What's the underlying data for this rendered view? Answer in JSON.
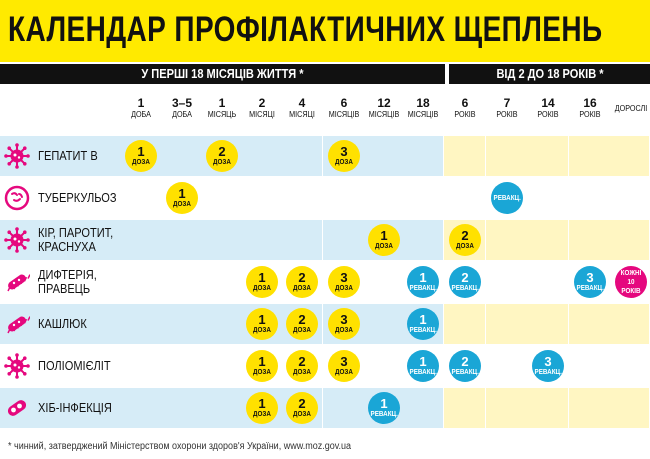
{
  "title": "КАЛЕНДАР ПРОФІЛАКТИЧНИХ ЩЕПЛЕНЬ",
  "bands": [
    {
      "label": "У ПЕРШІ 18 МІСЯЦІВ ЖИТТЯ *"
    },
    {
      "label": "ВІД 2 ДО 18 РОКІВ *"
    }
  ],
  "columns": [
    {
      "num": "1",
      "unit": "ДОБА"
    },
    {
      "num": "3–5",
      "unit": "ДОБА"
    },
    {
      "num": "1",
      "unit": "МІСЯЦЬ"
    },
    {
      "num": "2",
      "unit": "МІСЯЦІ"
    },
    {
      "num": "4",
      "unit": "МІСЯЦІ"
    },
    {
      "num": "6",
      "unit": "МІСЯЦІВ"
    },
    {
      "num": "12",
      "unit": "МІСЯЦІВ"
    },
    {
      "num": "18",
      "unit": "МІСЯЦІВ"
    },
    {
      "num": "6",
      "unit": "РОКІВ"
    },
    {
      "num": "7",
      "unit": "РОКІВ"
    },
    {
      "num": "14",
      "unit": "РОКІВ"
    },
    {
      "num": "16",
      "unit": "РОКІВ"
    },
    {
      "num": "",
      "unit": "ДОРОСЛІ"
    }
  ],
  "labels": {
    "dose": "ДОЗА",
    "revac": "РЕВАКЦ.",
    "every10": "КОЖНІ 10 РОКІВ"
  },
  "vaccines": [
    {
      "name": "ГЕПАТИТ В",
      "icon": "virus-icon"
    },
    {
      "name": "ТУБЕРКУЛЬОЗ",
      "icon": "bacteria-icon"
    },
    {
      "name": "КІР, ПАРОТИТ, КРАСНУХА",
      "icon": "virus-icon"
    },
    {
      "name": "ДИФТЕРІЯ, ПРАВЕЦЬ",
      "icon": "bacillus-icon"
    },
    {
      "name": "КАШЛЮК",
      "icon": "bacillus-icon"
    },
    {
      "name": "ПОЛІОМІЄЛІТ",
      "icon": "virus-icon"
    },
    {
      "name": "ХІБ-ІНФЕКЦІЯ",
      "icon": "cell-icon"
    }
  ],
  "marks": [
    {
      "row": 0,
      "col": 0,
      "n": "1",
      "type": "dose"
    },
    {
      "row": 0,
      "col": 2,
      "n": "2",
      "type": "dose"
    },
    {
      "row": 0,
      "col": 5,
      "n": "3",
      "type": "dose"
    },
    {
      "row": 1,
      "col": 1,
      "n": "1",
      "type": "dose"
    },
    {
      "row": 1,
      "col": 9,
      "n": "",
      "type": "revac"
    },
    {
      "row": 2,
      "col": 6,
      "n": "1",
      "type": "dose"
    },
    {
      "row": 2,
      "col": 8,
      "n": "2",
      "type": "dose"
    },
    {
      "row": 3,
      "col": 3,
      "n": "1",
      "type": "dose"
    },
    {
      "row": 3,
      "col": 4,
      "n": "2",
      "type": "dose"
    },
    {
      "row": 3,
      "col": 5,
      "n": "3",
      "type": "dose"
    },
    {
      "row": 3,
      "col": 7,
      "n": "1",
      "type": "revac"
    },
    {
      "row": 3,
      "col": 8,
      "n": "2",
      "type": "revac"
    },
    {
      "row": 3,
      "col": 11,
      "n": "3",
      "type": "revac"
    },
    {
      "row": 3,
      "col": 12,
      "n": "",
      "type": "every10"
    },
    {
      "row": 4,
      "col": 3,
      "n": "1",
      "type": "dose"
    },
    {
      "row": 4,
      "col": 4,
      "n": "2",
      "type": "dose"
    },
    {
      "row": 4,
      "col": 5,
      "n": "3",
      "type": "dose"
    },
    {
      "row": 4,
      "col": 7,
      "n": "1",
      "type": "revac"
    },
    {
      "row": 5,
      "col": 3,
      "n": "1",
      "type": "dose"
    },
    {
      "row": 5,
      "col": 4,
      "n": "2",
      "type": "dose"
    },
    {
      "row": 5,
      "col": 5,
      "n": "3",
      "type": "dose"
    },
    {
      "row": 5,
      "col": 7,
      "n": "1",
      "type": "revac"
    },
    {
      "row": 5,
      "col": 8,
      "n": "2",
      "type": "revac"
    },
    {
      "row": 5,
      "col": 10,
      "n": "3",
      "type": "revac"
    },
    {
      "row": 6,
      "col": 3,
      "n": "1",
      "type": "dose"
    },
    {
      "row": 6,
      "col": 4,
      "n": "2",
      "type": "dose"
    },
    {
      "row": 6,
      "col": 6,
      "n": "1",
      "type": "revac"
    }
  ],
  "colors": {
    "yellow": "#ffe100",
    "blue": "#1aa6d6",
    "pink": "#e5087e",
    "row_blue": "#d6ecf7",
    "row_yellow": "#fff6c2",
    "icon": "#e5087e"
  },
  "footnote": "* чинний, затверджений Міністерством охорони здоров'я України, www.moz.gov.ua"
}
